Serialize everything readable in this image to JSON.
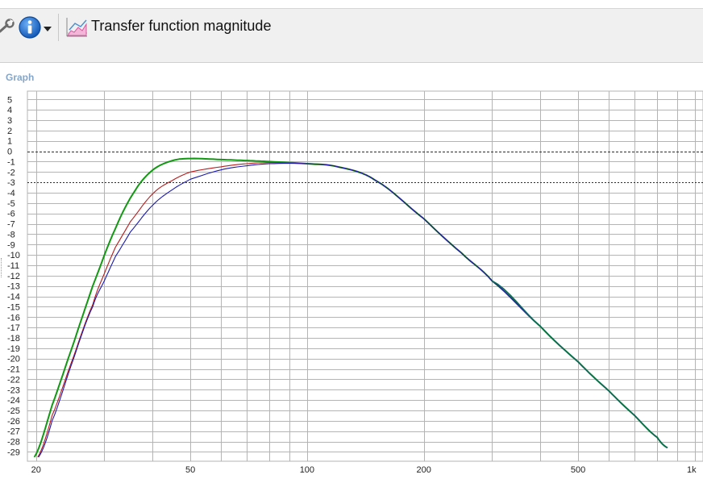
{
  "toolbar": {
    "title": "Transfer function magnitude",
    "icons": [
      "wrench-icon",
      "info-icon",
      "dropdown-arrow-icon",
      "graph-icon"
    ]
  },
  "panel": {
    "label": "Graph"
  },
  "colors": {
    "grid": "#b4b4b4",
    "background": "#ffffff",
    "green": "#129812",
    "red": "#b71c1c",
    "blue": "#1a1ab0",
    "teal": "#0b6a5a"
  },
  "chart_data": {
    "type": "line",
    "xscale": "log",
    "xlim": [
      19,
      1050
    ],
    "ylim": [
      -29.9,
      5.8
    ],
    "grid": true,
    "x_ticks": [
      20,
      50,
      100,
      200,
      500,
      1000
    ],
    "x_tick_labels": [
      "20",
      "50",
      "100",
      "200",
      "500",
      "1k"
    ],
    "y_ticks": [
      5,
      4,
      3,
      2,
      1,
      0,
      -1,
      -2,
      -3,
      -4,
      -5,
      -6,
      -7,
      -8,
      -9,
      -10,
      -11,
      -12,
      -13,
      -14,
      -15,
      -16,
      -17,
      -18,
      -19,
      -20,
      -21,
      -22,
      -23,
      -24,
      -25,
      -26,
      -27,
      -28,
      -29
    ],
    "y_tick_labels": [
      "5",
      "4",
      "3",
      "2",
      "1",
      "0",
      "-1",
      "-2",
      "-3",
      "-4",
      "-5",
      "-6",
      "-7",
      "-8",
      "-9",
      "-10",
      "-11",
      "-12",
      "-13",
      "-14",
      "-15",
      "-16",
      "-17",
      "-18",
      "-19",
      "-20",
      "-21",
      "-22",
      "-23",
      "-24",
      "-25",
      "-26",
      "-27",
      "-28",
      "-29"
    ],
    "reference_lines": [
      0,
      -3
    ],
    "series": [
      {
        "color": "green",
        "x": [
          19.8,
          22,
          25,
          28,
          32,
          36,
          40,
          45,
          50,
          60,
          70,
          80,
          100,
          120,
          150,
          200,
          250,
          300,
          400,
          500,
          600,
          700,
          800,
          850
        ],
        "y": [
          -29.5,
          -24.5,
          -18.5,
          -13.0,
          -7.5,
          -3.8,
          -1.8,
          -0.9,
          -0.7,
          -0.8,
          -0.9,
          -1.0,
          -1.2,
          -1.5,
          -2.8,
          -6.5,
          -9.8,
          -12.5,
          -16.9,
          -20.3,
          -23.1,
          -25.5,
          -27.6,
          -28.6
        ]
      },
      {
        "color": "red",
        "x": [
          20.2,
          22,
          25,
          28,
          30,
          32,
          35,
          40,
          45,
          50,
          60,
          70,
          80,
          100,
          120,
          150,
          200,
          250,
          300,
          400,
          500,
          600,
          700,
          800,
          850
        ],
        "y": [
          -29.5,
          -25.5,
          -19.8,
          -14.8,
          -11.8,
          -9.3,
          -6.8,
          -4.1,
          -2.8,
          -2.0,
          -1.5,
          -1.2,
          -1.1,
          -1.2,
          -1.5,
          -2.8,
          -6.5,
          -9.8,
          -12.5,
          -16.9,
          -20.3,
          -23.1,
          -25.5,
          -27.6,
          -28.6
        ]
      },
      {
        "color": "blue",
        "x": [
          20.3,
          22,
          25,
          28,
          30,
          32,
          35,
          40,
          45,
          50,
          60,
          70,
          80,
          100,
          120,
          150,
          200,
          250,
          300,
          400,
          500,
          600,
          700,
          800,
          850
        ],
        "y": [
          -29.5,
          -26.0,
          -20.0,
          -15.0,
          -12.5,
          -10.2,
          -7.8,
          -5.2,
          -3.7,
          -2.7,
          -1.8,
          -1.4,
          -1.2,
          -1.2,
          -1.5,
          -2.8,
          -6.5,
          -9.8,
          -12.5,
          -16.9,
          -20.3,
          -23.1,
          -25.5,
          -27.6,
          -28.6
        ]
      },
      {
        "color": "teal",
        "x": [
          300,
          400,
          500,
          600,
          700,
          800,
          850
        ],
        "y": [
          -12.5,
          -16.9,
          -20.3,
          -23.1,
          -25.5,
          -27.6,
          -28.6
        ]
      }
    ]
  }
}
